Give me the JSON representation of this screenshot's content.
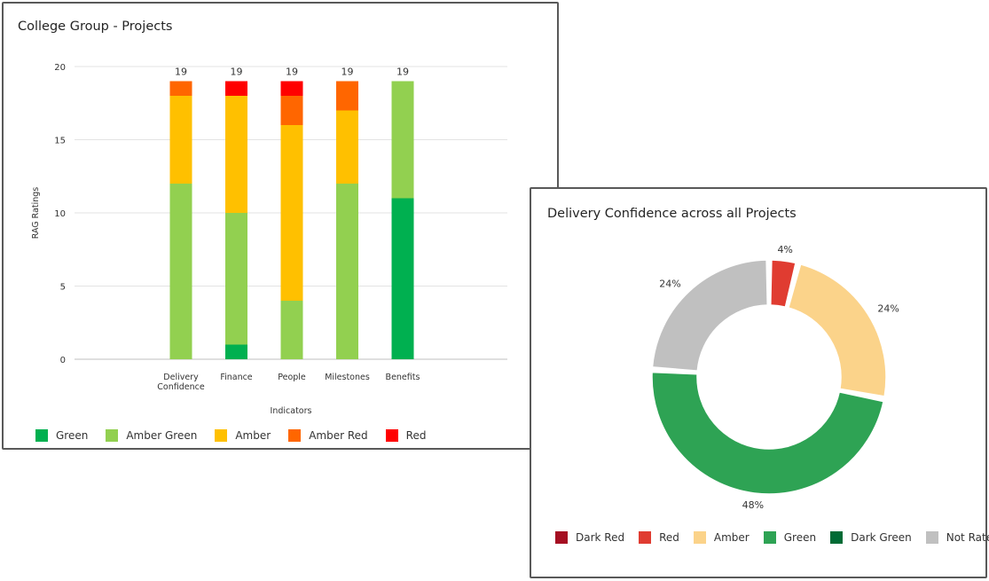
{
  "left_panel": {
    "title": "College Group - Projects"
  },
  "right_panel": {
    "title": "Delivery Confidence across all Projects"
  },
  "chart_data": [
    {
      "type": "bar",
      "stacked": true,
      "title": "College Group - Projects",
      "xlabel": "Indicators",
      "ylabel": "RAG Ratings",
      "ylim": [
        0,
        20
      ],
      "yticks": [
        "0",
        "5",
        "10",
        "15",
        "20"
      ],
      "grid": true,
      "legend_position": "bottom-left",
      "categories": [
        [
          "Delivery",
          "Confidence"
        ],
        [
          "Finance"
        ],
        [
          "People"
        ],
        [
          "Milestones"
        ],
        [
          "Benefits"
        ]
      ],
      "totals": [
        "19",
        "19",
        "19",
        "19",
        "19"
      ],
      "series": [
        {
          "name": "Green",
          "color": "#00b050",
          "values": [
            0,
            1,
            0,
            0,
            11
          ]
        },
        {
          "name": "Amber Green",
          "color": "#92d050",
          "values": [
            12,
            9,
            4,
            12,
            8
          ]
        },
        {
          "name": "Amber",
          "color": "#ffc000",
          "values": [
            6,
            8,
            12,
            5,
            0
          ]
        },
        {
          "name": "Amber Red",
          "color": "#ff6600",
          "values": [
            1,
            0,
            2,
            2,
            0
          ]
        },
        {
          "name": "Red",
          "color": "#ff0000",
          "values": [
            0,
            1,
            1,
            0,
            0
          ]
        }
      ]
    },
    {
      "type": "pie",
      "donut": true,
      "title": "Delivery Confidence across all Projects",
      "legend_position": "bottom",
      "slices": [
        {
          "name": "Red",
          "value": 4,
          "label": "4%",
          "color": "#e03c31"
        },
        {
          "name": "Amber",
          "value": 24,
          "label": "24%",
          "color": "#fbd38a"
        },
        {
          "name": "Green",
          "value": 48,
          "label": "48%",
          "color": "#2ea354"
        },
        {
          "name": "Not Rated",
          "value": 24,
          "label": "24%",
          "color": "#c0c0c0"
        }
      ],
      "legend": [
        {
          "name": "Dark Red",
          "color": "#a50f22"
        },
        {
          "name": "Red",
          "color": "#e03c31"
        },
        {
          "name": "Amber",
          "color": "#fbd38a"
        },
        {
          "name": "Green",
          "color": "#2ea354"
        },
        {
          "name": "Dark Green",
          "color": "#006b35"
        },
        {
          "name": "Not Rated",
          "color": "#c0c0c0"
        }
      ]
    }
  ]
}
